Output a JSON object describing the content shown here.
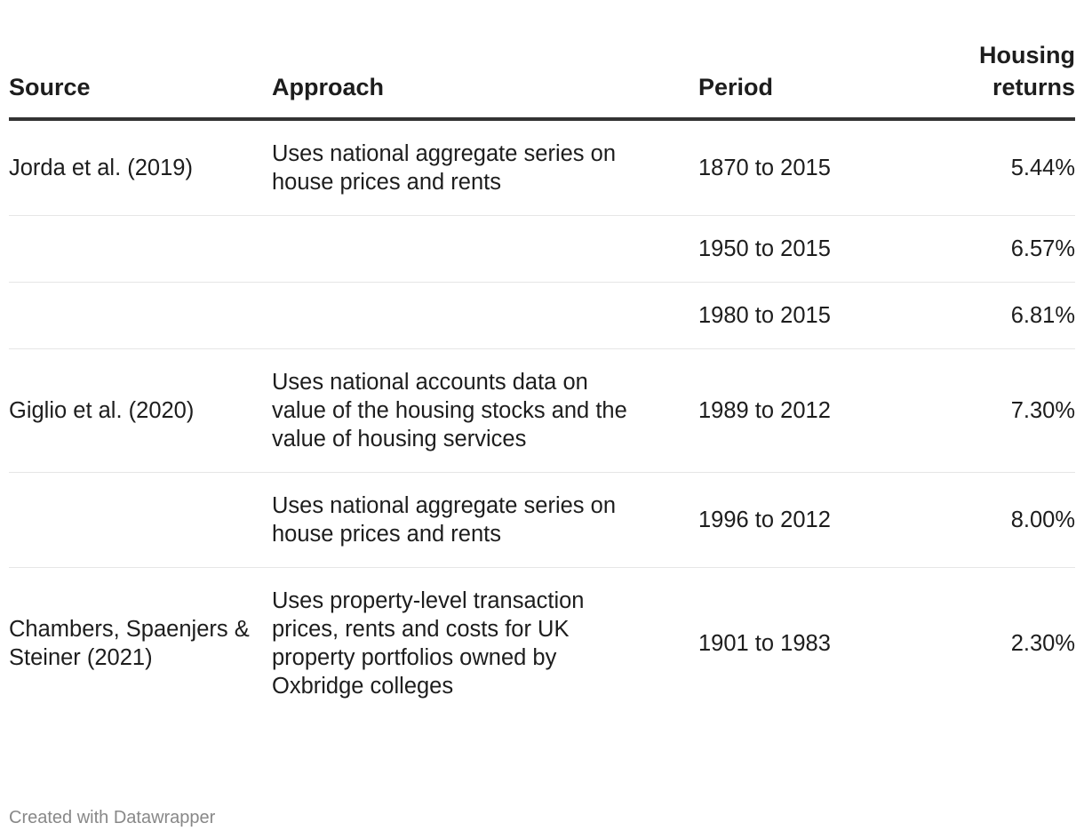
{
  "chart_data": {
    "type": "table",
    "columns": [
      "Source",
      "Approach",
      "Period",
      "Housing returns"
    ],
    "rows": [
      {
        "source": "Jorda et al. (2019)",
        "approach": "Uses national aggregate series on house prices and rents",
        "period": "1870 to 2015",
        "returns": "5.44%"
      },
      {
        "source": "",
        "approach": "",
        "period": "1950 to 2015",
        "returns": "6.57%"
      },
      {
        "source": "",
        "approach": "",
        "period": "1980 to 2015",
        "returns": "6.81%"
      },
      {
        "source": "Giglio et al. (2020)",
        "approach": "Uses national accounts data on value of the housing stocks and the value of housing services",
        "period": "1989 to 2012",
        "returns": "7.30%"
      },
      {
        "source": "",
        "approach": "Uses national aggregate series on house prices and rents",
        "period": "1996 to 2012",
        "returns": "8.00%"
      },
      {
        "source": "Chambers, Spaenjers & Steiner (2021)",
        "approach": "Uses property-level transaction prices, rents and costs for UK property portfolios owned by Oxbridge colleges",
        "period": "1901 to 1983",
        "returns": "2.30%"
      }
    ]
  },
  "footer": {
    "credit": "Created with Datawrapper"
  },
  "colors": {
    "text": "#1d1d1d",
    "header_rule": "#333333",
    "row_rule": "#e6e6e6",
    "footer_text": "#888888"
  }
}
